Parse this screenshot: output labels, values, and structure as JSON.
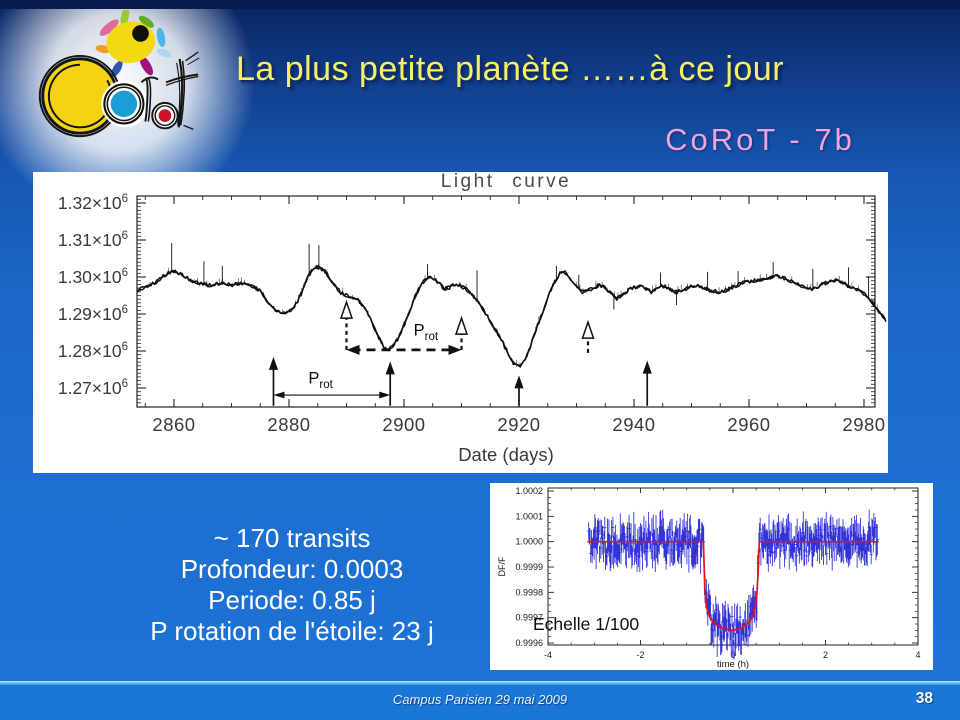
{
  "slide": {
    "title": "La plus petite planète ……à ce jour",
    "subtitle": "CoRoT - 7b",
    "stats_lines": [
      "~ 170 transits",
      "Profondeur: 0.0003",
      "Periode: 0.85 j",
      "P rotation de l'étoile: 23 j"
    ],
    "scale_note": "Echelle 1/100",
    "footer": {
      "text": "Campus Parisien 29 mai 2009",
      "page_number": "38"
    }
  },
  "colors": {
    "background_top": "#0a2360",
    "background_bottom": "#1d73d5",
    "footer_band": "#1b77d7",
    "divider_line": "#6cc4f2",
    "title_text": "#f3f163",
    "title_shadow": "#14296b",
    "subtitle_text": "#f2a3d9",
    "stats_text": "#ffffff",
    "curve_black": "#111111",
    "model_red": "#e81010",
    "data_blue": "#2525d5"
  },
  "chart_data": [
    {
      "id": "light_curve",
      "type": "line",
      "title": "Light curve",
      "xlabel": "Date (days)",
      "x_ticks": [
        {
          "v": 2860,
          "label": "2860"
        },
        {
          "v": 2880,
          "label": "2880"
        },
        {
          "v": 2900,
          "label": "2900"
        },
        {
          "v": 2920,
          "label": "2920"
        },
        {
          "v": 2940,
          "label": "2940"
        },
        {
          "v": 2960,
          "label": "2960"
        },
        {
          "v": 2980,
          "label": "2980"
        }
      ],
      "y_ticks": [
        {
          "v": 1.32,
          "base": "1.32×10",
          "exp": "6"
        },
        {
          "v": 1.31,
          "base": "1.31×10",
          "exp": "6"
        },
        {
          "v": 1.3,
          "base": "1.30×10",
          "exp": "6"
        },
        {
          "v": 1.29,
          "base": "1.29×10",
          "exp": "6"
        },
        {
          "v": 1.28,
          "base": "1.28×10",
          "exp": "6"
        },
        {
          "v": 1.27,
          "base": "1.27×10",
          "exp": "6"
        }
      ],
      "xlim": [
        2853.6,
        2982.4
      ],
      "ylim": [
        1.2649,
        1.3219
      ],
      "y_values_scale": 1000000,
      "color": "#111111",
      "points": [
        [
          2853.6,
          1.2962
        ],
        [
          2854,
          1.2966
        ],
        [
          2855,
          1.2972
        ],
        [
          2856,
          1.2978
        ],
        [
          2857,
          1.2988
        ],
        [
          2858,
          1.3
        ],
        [
          2859,
          1.301
        ],
        [
          2860,
          1.3016
        ],
        [
          2861,
          1.301
        ],
        [
          2862,
          1.3
        ],
        [
          2863,
          1.299
        ],
        [
          2864,
          1.2984
        ],
        [
          2865,
          1.298
        ],
        [
          2866,
          1.2978
        ],
        [
          2867,
          1.298
        ],
        [
          2868,
          1.2984
        ],
        [
          2869,
          1.2982
        ],
        [
          2870,
          1.2978
        ],
        [
          2871,
          1.2981
        ],
        [
          2872,
          1.2984
        ],
        [
          2873,
          1.298
        ],
        [
          2874,
          1.2972
        ],
        [
          2875,
          1.2962
        ],
        [
          2876,
          1.294
        ],
        [
          2877,
          1.292
        ],
        [
          2878,
          1.2908
        ],
        [
          2879,
          1.2902
        ],
        [
          2880,
          1.2906
        ],
        [
          2881,
          1.292
        ],
        [
          2882,
          1.295
        ],
        [
          2883,
          1.299
        ],
        [
          2884,
          1.302
        ],
        [
          2885,
          1.3027
        ],
        [
          2886,
          1.302
        ],
        [
          2887,
          1.3
        ],
        [
          2888,
          1.2975
        ],
        [
          2889,
          1.2958
        ],
        [
          2890,
          1.295
        ],
        [
          2891,
          1.2944
        ],
        [
          2892,
          1.2938
        ],
        [
          2893,
          1.292
        ],
        [
          2894,
          1.289
        ],
        [
          2895,
          1.2857
        ],
        [
          2896,
          1.2823
        ],
        [
          2897,
          1.28
        ],
        [
          2898,
          1.2812
        ],
        [
          2899,
          1.2835
        ],
        [
          2900,
          1.287
        ],
        [
          2901,
          1.291
        ],
        [
          2902,
          1.295
        ],
        [
          2903,
          1.298
        ],
        [
          2904,
          1.2998
        ],
        [
          2905,
          1.3
        ],
        [
          2906,
          1.2985
        ],
        [
          2907,
          1.2968
        ],
        [
          2908,
          1.2972
        ],
        [
          2909,
          1.2982
        ],
        [
          2910,
          1.2975
        ],
        [
          2911,
          1.2965
        ],
        [
          2912,
          1.295
        ],
        [
          2913,
          1.293
        ],
        [
          2914,
          1.2905
        ],
        [
          2915,
          1.288
        ],
        [
          2916,
          1.2855
        ],
        [
          2917,
          1.2828
        ],
        [
          2918,
          1.2795
        ],
        [
          2919,
          1.2768
        ],
        [
          2920,
          1.2757
        ],
        [
          2921,
          1.2775
        ],
        [
          2922,
          1.2815
        ],
        [
          2923,
          1.286
        ],
        [
          2924,
          1.29
        ],
        [
          2925,
          1.2945
        ],
        [
          2926,
          1.298
        ],
        [
          2927,
          1.3008
        ],
        [
          2928,
          1.3013
        ],
        [
          2929,
          1.2995
        ],
        [
          2930,
          1.2975
        ],
        [
          2931,
          1.296
        ],
        [
          2932,
          1.2963
        ],
        [
          2933,
          1.2972
        ],
        [
          2934,
          1.2978
        ],
        [
          2935,
          1.297
        ],
        [
          2936,
          1.2958
        ],
        [
          2937,
          1.2942
        ],
        [
          2938,
          1.2952
        ],
        [
          2939,
          1.2965
        ],
        [
          2940,
          1.2972
        ],
        [
          2941,
          1.2975
        ],
        [
          2942,
          1.2968
        ],
        [
          2943,
          1.296
        ],
        [
          2944,
          1.297
        ],
        [
          2945,
          1.2976
        ],
        [
          2946,
          1.297
        ],
        [
          2947,
          1.2958
        ],
        [
          2948,
          1.2962
        ],
        [
          2949,
          1.2968
        ],
        [
          2950,
          1.2975
        ],
        [
          2951,
          1.2978
        ],
        [
          2952,
          1.2972
        ],
        [
          2953,
          1.2965
        ],
        [
          2954,
          1.2962
        ],
        [
          2955,
          1.2958
        ],
        [
          2956,
          1.2964
        ],
        [
          2957,
          1.2972
        ],
        [
          2958,
          1.2978
        ],
        [
          2959,
          1.2985
        ],
        [
          2960,
          1.2988
        ],
        [
          2961,
          1.299
        ],
        [
          2962,
          1.2993
        ],
        [
          2963,
          1.2996
        ],
        [
          2964,
          1.3
        ],
        [
          2965,
          1.3003
        ],
        [
          2966,
          1.2998
        ],
        [
          2967,
          1.299
        ],
        [
          2968,
          1.2984
        ],
        [
          2969,
          1.2977
        ],
        [
          2970,
          1.2972
        ],
        [
          2971,
          1.2968
        ],
        [
          2972,
          1.2975
        ],
        [
          2973,
          1.2982
        ],
        [
          2974,
          1.2988
        ],
        [
          2975,
          1.2992
        ],
        [
          2976,
          1.2987
        ],
        [
          2977,
          1.2978
        ],
        [
          2978,
          1.2972
        ],
        [
          2979,
          1.2965
        ],
        [
          2980,
          1.2955
        ],
        [
          2981,
          1.294
        ],
        [
          2982,
          1.292
        ],
        [
          2983,
          1.2898
        ],
        [
          2984,
          1.2878
        ]
      ],
      "spikes": [
        [
          2859.6,
          1.3092
        ],
        [
          2865.2,
          1.3042
        ],
        [
          2868.4,
          1.303
        ],
        [
          2883.5,
          1.309
        ],
        [
          2885.2,
          1.3086
        ],
        [
          2904.1,
          1.3035
        ],
        [
          2912.7,
          1.3018
        ],
        [
          2926.5,
          1.303
        ],
        [
          2930.4,
          1.3006
        ],
        [
          2944.6,
          1.3012
        ],
        [
          2952.8,
          1.3014
        ],
        [
          2958.1,
          1.3016
        ],
        [
          2964.2,
          1.304
        ],
        [
          2971.1,
          1.3022
        ],
        [
          2977.3,
          1.3026
        ],
        [
          2980.8,
          1.3002
        ],
        [
          2936.5,
          1.2912
        ],
        [
          2947.4,
          1.2924
        ]
      ],
      "noise": {
        "seed": 11,
        "step_days": 0.3,
        "jitter": 0.0005,
        "fuzz_prob": 0.4,
        "fuzz_amp": 0.0016,
        "fuzz_step": 0.55
      },
      "annotations": {
        "solid_arrows": [
          {
            "x": 2877.3,
            "tip": 1.2784,
            "tail": 1.2652
          },
          {
            "x": 2897.6,
            "tip": 1.2772,
            "tail": 1.2652
          },
          {
            "x": 2920,
            "tip": 1.2734,
            "tail": 1.2652
          },
          {
            "x": 2942.3,
            "tip": 1.2774,
            "tail": 1.2652
          }
        ],
        "open_arrows": [
          {
            "x": 2890,
            "tip": 1.2932,
            "tail": 1.2803
          },
          {
            "x": 2910,
            "tip": 1.2889,
            "tail": 1.2803
          },
          {
            "x": 2932,
            "tip": 1.2878,
            "tail": 1.2795
          }
        ],
        "double_arrows": [
          {
            "style": "thin",
            "x0": 2877.3,
            "x1": 2897.6,
            "y": 1.2681,
            "label": "P",
            "sub": "rot",
            "label_x": 2885.5,
            "label_y": 1.2712
          },
          {
            "style": "dashed",
            "x0": 2890,
            "x1": 2910,
            "y": 1.2803,
            "label": "P",
            "sub": "rot",
            "label_x": 2903.8,
            "label_y": 1.2842
          }
        ]
      }
    },
    {
      "id": "transit_zoom",
      "type": "scatter_errorbars_with_model",
      "xlabel": "time (h)",
      "ylabel": "DF/F",
      "x_ticks": [
        {
          "v": -4,
          "label": "-4"
        },
        {
          "v": -2,
          "label": "-2"
        },
        {
          "v": 0,
          "label": "0"
        },
        {
          "v": 2,
          "label": "2"
        },
        {
          "v": 4,
          "label": "4"
        }
      ],
      "y_ticks": [
        {
          "v": 1.0002,
          "label": "1.0002"
        },
        {
          "v": 1.0001,
          "label": "1.0001"
        },
        {
          "v": 1.0,
          "label": "1.0000"
        },
        {
          "v": 0.9999,
          "label": "0.9999"
        },
        {
          "v": 0.9998,
          "label": "0.9998"
        },
        {
          "v": 0.9997,
          "label": "0.9997"
        },
        {
          "v": 0.9996,
          "label": "0.9996"
        }
      ],
      "xlim": [
        -4,
        4
      ],
      "ylim": [
        0.999592,
        1.000212
      ],
      "model": {
        "color": "#e81010",
        "points": [
          [
            -3.15,
            1.0
          ],
          [
            -0.64,
            1.0
          ],
          [
            -0.61,
            0.99982
          ],
          [
            -0.57,
            0.99974
          ],
          [
            -0.5,
            0.9997
          ],
          [
            -0.4,
            0.99968
          ],
          [
            -0.25,
            0.99966
          ],
          [
            0,
            0.99965
          ],
          [
            0.2,
            0.99966
          ],
          [
            0.33,
            0.99968
          ],
          [
            0.42,
            0.9997
          ],
          [
            0.48,
            0.99974
          ],
          [
            0.52,
            0.9998
          ],
          [
            0.55,
            0.9999
          ],
          [
            0.57,
            1.0
          ],
          [
            3.15,
            1.0
          ]
        ]
      },
      "data": {
        "color": "#2525d5",
        "seed": 97,
        "n": 430,
        "t0": -3.12,
        "t1": 3.12,
        "amp": 6e-05,
        "err_min": 3e-05,
        "err_max": 7e-05
      }
    }
  ]
}
